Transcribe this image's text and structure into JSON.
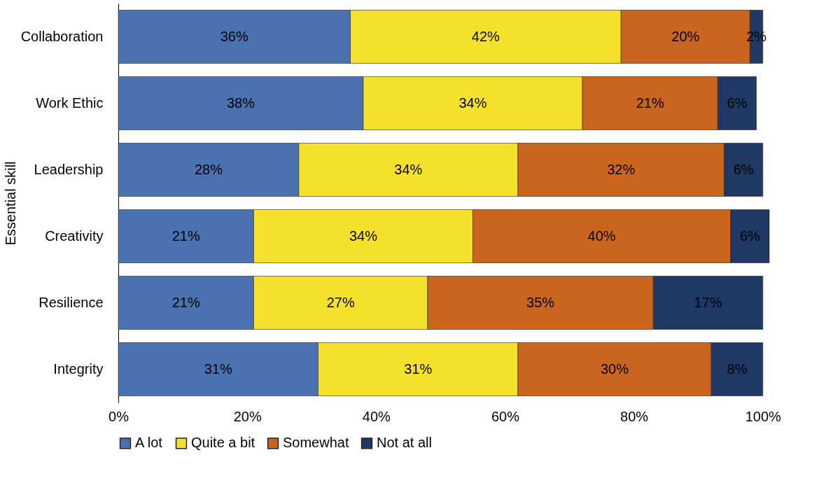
{
  "chart_data": {
    "type": "bar",
    "orientation": "horizontal",
    "stacked": true,
    "ylabel": "Essential skill",
    "categories": [
      "Collaboration",
      "Work Ethic",
      "Leadership",
      "Creativity",
      "Resilience",
      "Integrity"
    ],
    "series": [
      {
        "name": "A lot",
        "color": "#4a72b0",
        "values": [
          36,
          38,
          28,
          21,
          21,
          31
        ],
        "value_labels": [
          "36%",
          "38%",
          "28%",
          "21%",
          "21%",
          "31%"
        ]
      },
      {
        "name": "Quite a bit",
        "color": "#f5e02c",
        "values": [
          42,
          34,
          34,
          34,
          27,
          31
        ],
        "value_labels": [
          "42%",
          "34%",
          "34%",
          "34%",
          "27%",
          "31%"
        ]
      },
      {
        "name": "Somewhat",
        "color": "#c9651f",
        "values": [
          20,
          21,
          32,
          40,
          35,
          30
        ],
        "value_labels": [
          "20%",
          "21%",
          "32%",
          "40%",
          "35%",
          "30%"
        ]
      },
      {
        "name": "Not at all",
        "color": "#1f3864",
        "values": [
          2,
          6,
          6,
          6,
          17,
          8
        ],
        "value_labels": [
          "2%",
          "6%",
          "6%",
          "6%",
          "17%",
          "8%"
        ]
      }
    ],
    "xlim": [
      0,
      101
    ],
    "xticks": [
      {
        "value": 0,
        "label": "0%"
      },
      {
        "value": 20,
        "label": "20%"
      },
      {
        "value": 40,
        "label": "40%"
      },
      {
        "value": 60,
        "label": "60%"
      },
      {
        "value": 80,
        "label": "80%"
      },
      {
        "value": 100,
        "label": "100%"
      }
    ],
    "grid": false,
    "legend": "bottom"
  }
}
